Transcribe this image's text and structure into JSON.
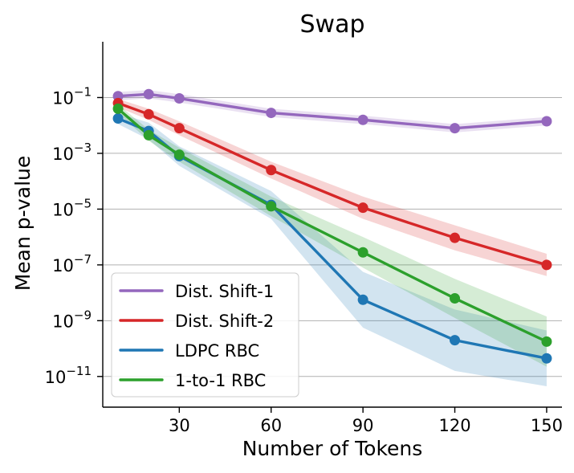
{
  "chart_data": {
    "type": "line",
    "title": "Swap",
    "xlabel": "Number of Tokens",
    "ylabel": "Mean p-value",
    "yscale": "log",
    "xlim": [
      5,
      155
    ],
    "ylim_exp": [
      -12.1,
      1.0
    ],
    "xticks": [
      30,
      60,
      90,
      120,
      150
    ],
    "xtick_labels": [
      "30",
      "60",
      "90",
      "120",
      "150"
    ],
    "yticks_exp": [
      -1,
      -3,
      -5,
      -7,
      -9,
      -11
    ],
    "ytick_base": "10",
    "ytick_exp_labels": [
      "−1",
      "−3",
      "−5",
      "−7",
      "−9",
      "−11"
    ],
    "grid": "horizontal",
    "legend_position": "lower-left",
    "x": [
      10,
      20,
      30,
      60,
      90,
      120,
      150
    ],
    "series": [
      {
        "name": "Dist. Shift-1",
        "color": "#9467bd",
        "y_exp": [
          -0.95,
          -0.88,
          -1.03,
          -1.55,
          -1.8,
          -2.1,
          -1.85
        ],
        "band_exp": [
          0.15,
          0.15,
          0.15,
          0.15,
          0.15,
          0.15,
          0.15
        ]
      },
      {
        "name": "Dist. Shift-2",
        "color": "#d62728",
        "y_exp": [
          -1.2,
          -1.6,
          -2.1,
          -3.6,
          -4.95,
          -6.03,
          -7.0
        ],
        "band_exp": [
          0.15,
          0.2,
          0.25,
          0.3,
          0.4,
          0.45,
          0.4
        ]
      },
      {
        "name": "LDPC RBC",
        "color": "#1f77b4",
        "y_exp": [
          -1.75,
          -2.2,
          -3.1,
          -4.85,
          -8.25,
          -9.7,
          -10.35
        ],
        "band_exp": [
          0.2,
          0.3,
          0.35,
          0.5,
          1.0,
          1.1,
          1.0
        ]
      },
      {
        "name": "1-to-1 RBC",
        "color": "#2ca02c",
        "y_exp": [
          -1.4,
          -2.35,
          -3.05,
          -4.9,
          -6.55,
          -8.2,
          -9.75
        ],
        "band_exp": [
          0.15,
          0.2,
          0.25,
          0.35,
          0.55,
          0.7,
          0.9
        ]
      }
    ]
  }
}
